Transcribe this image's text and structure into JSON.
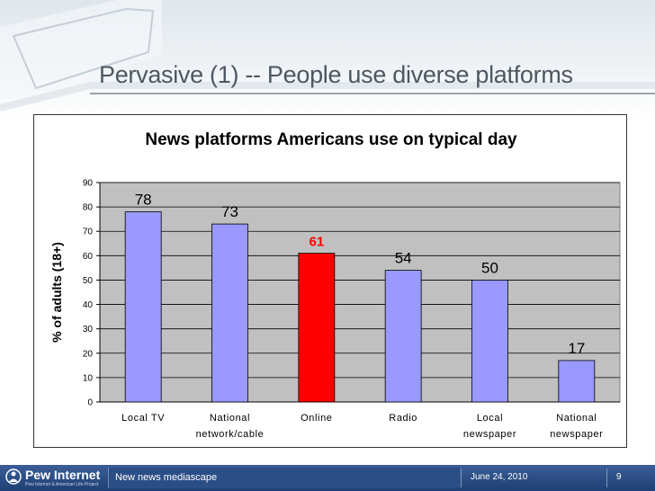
{
  "slide": {
    "title": "Pervasive (1) -- People use diverse platforms"
  },
  "footer": {
    "logo_main": "Pew Internet",
    "logo_sub": "Pew Internet & American Life Project",
    "presentation": "New news mediascape",
    "date": "June 24, 2010",
    "page": "9"
  },
  "colors": {
    "bar": "#9999ff",
    "highlight_bar": "#ff0000",
    "highlight_label": "#ff0000",
    "plot_bg": "#c0c0c0",
    "footer_bg": "#24457c"
  },
  "chart_data": {
    "type": "bar",
    "title": "News platforms Americans use on typical day",
    "xlabel": "",
    "ylabel": "% of adults (18+)",
    "ylim": [
      0,
      90
    ],
    "yticks": [
      0,
      10,
      20,
      30,
      40,
      50,
      60,
      70,
      80,
      90
    ],
    "categories": [
      [
        "Local TV"
      ],
      [
        "National",
        "network/cable"
      ],
      [
        "Online"
      ],
      [
        "Radio"
      ],
      [
        "Local",
        "newspaper"
      ],
      [
        "National",
        "newspaper"
      ]
    ],
    "values": [
      78,
      73,
      61,
      54,
      50,
      17
    ],
    "data_labels": [
      "78",
      "73",
      "61",
      "54",
      "50",
      "17"
    ],
    "highlight_index": 2,
    "grid": true,
    "legend": "none"
  }
}
